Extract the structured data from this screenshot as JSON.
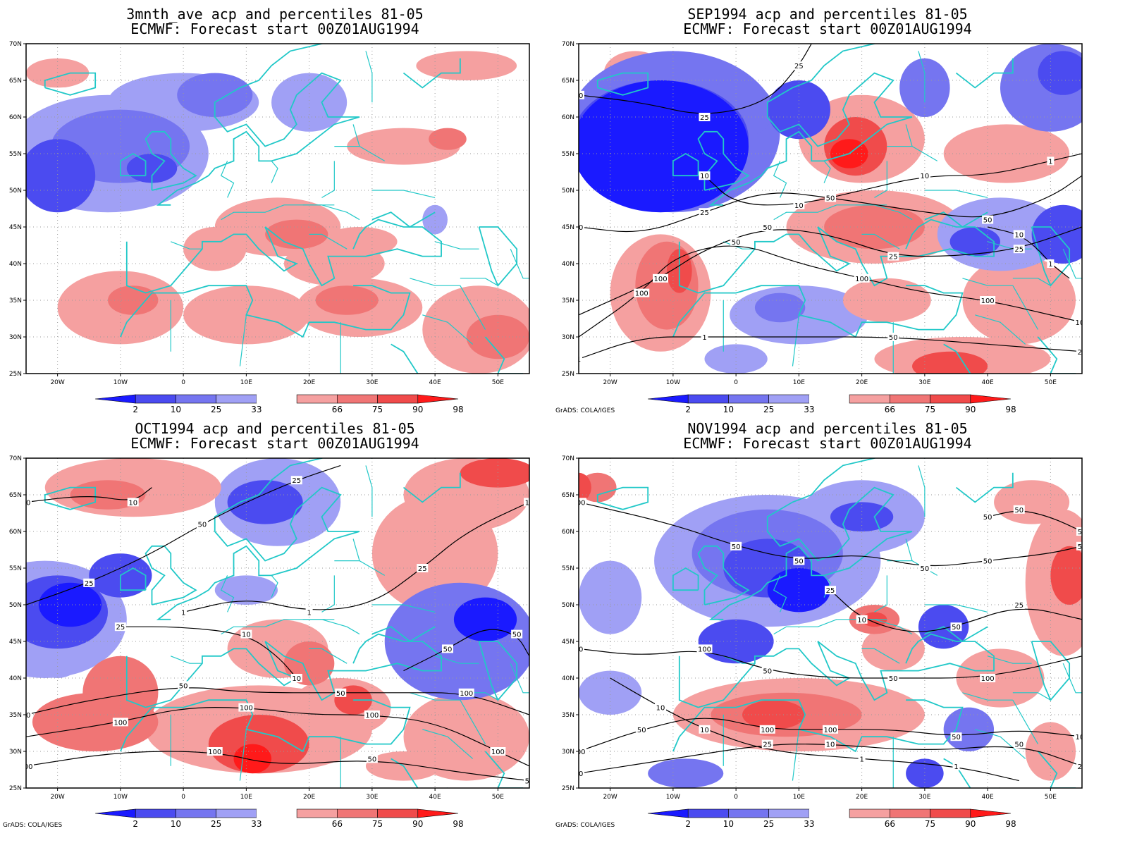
{
  "colors": {
    "coast": "#21c8c8",
    "contour": "#000000",
    "grid": "#9a9a9a",
    "frame": "#000000",
    "classes": [
      "#1a1aff",
      "#4b4bf0",
      "#7575f0",
      "#a0a0f5",
      "#f5a0a0",
      "#f07575",
      "#f04b4b",
      "#ff1a1a"
    ]
  },
  "colorbar": {
    "labels": [
      "2",
      "10",
      "25",
      "33",
      "66",
      "75",
      "90",
      "98"
    ]
  },
  "credit": "GrADS: COLA/IGES",
  "axes": {
    "lat_labels": [
      "70N",
      "65N",
      "60N",
      "55N",
      "50N",
      "45N",
      "40N",
      "35N",
      "30N",
      "25N"
    ],
    "lon_labels": [
      "20W",
      "10W",
      "0",
      "10E",
      "20E",
      "30E",
      "40E",
      "50E"
    ]
  },
  "panels": [
    {
      "title1": "3mnth_ave acp and percentiles 81-05",
      "title2": "ECMWF: Forecast start 00Z01AUG1994",
      "show_credit": false,
      "contour_labels": []
    },
    {
      "title1": "SEP1994 acp and percentiles 81-05",
      "title2": "ECMWF: Forecast start 00Z01AUG1994",
      "show_credit": true,
      "contour_labels": [
        "100",
        "50",
        "100",
        "100",
        "100",
        "100",
        "50",
        "25",
        "25",
        "50",
        "25",
        "50",
        "50",
        "50",
        "25",
        "25",
        "10",
        "10",
        "10",
        "1",
        "1",
        "1",
        "50",
        "25",
        "10",
        "1"
      ]
    },
    {
      "title1": "OCT1994 acp and percentiles 81-05",
      "title2": "ECMWF: Forecast start 00Z01AUG1994",
      "show_credit": true,
      "contour_labels": [
        "100",
        "100",
        "100",
        "100",
        "50",
        "50",
        "50",
        "100",
        "100",
        "100",
        "50",
        "50",
        "25",
        "50",
        "25",
        "10",
        "10",
        "1",
        "1",
        "25",
        "10",
        "50",
        "50",
        "25",
        "10",
        "10"
      ]
    },
    {
      "title1": "NOV1994 acp and percentiles 81-05",
      "title2": "ECMWF: Forecast start 00Z01AUG1994",
      "show_credit": true,
      "contour_labels": [
        "100",
        "50",
        "50",
        "50",
        "50",
        "50",
        "50",
        "100",
        "50",
        "50",
        "100",
        "100",
        "50",
        "100",
        "100",
        "50",
        "100",
        "50",
        "25",
        "10",
        "50",
        "25",
        "10",
        "10",
        "1",
        "1",
        "25",
        "10",
        "50",
        "25",
        "50",
        "50",
        "50"
      ]
    }
  ]
}
